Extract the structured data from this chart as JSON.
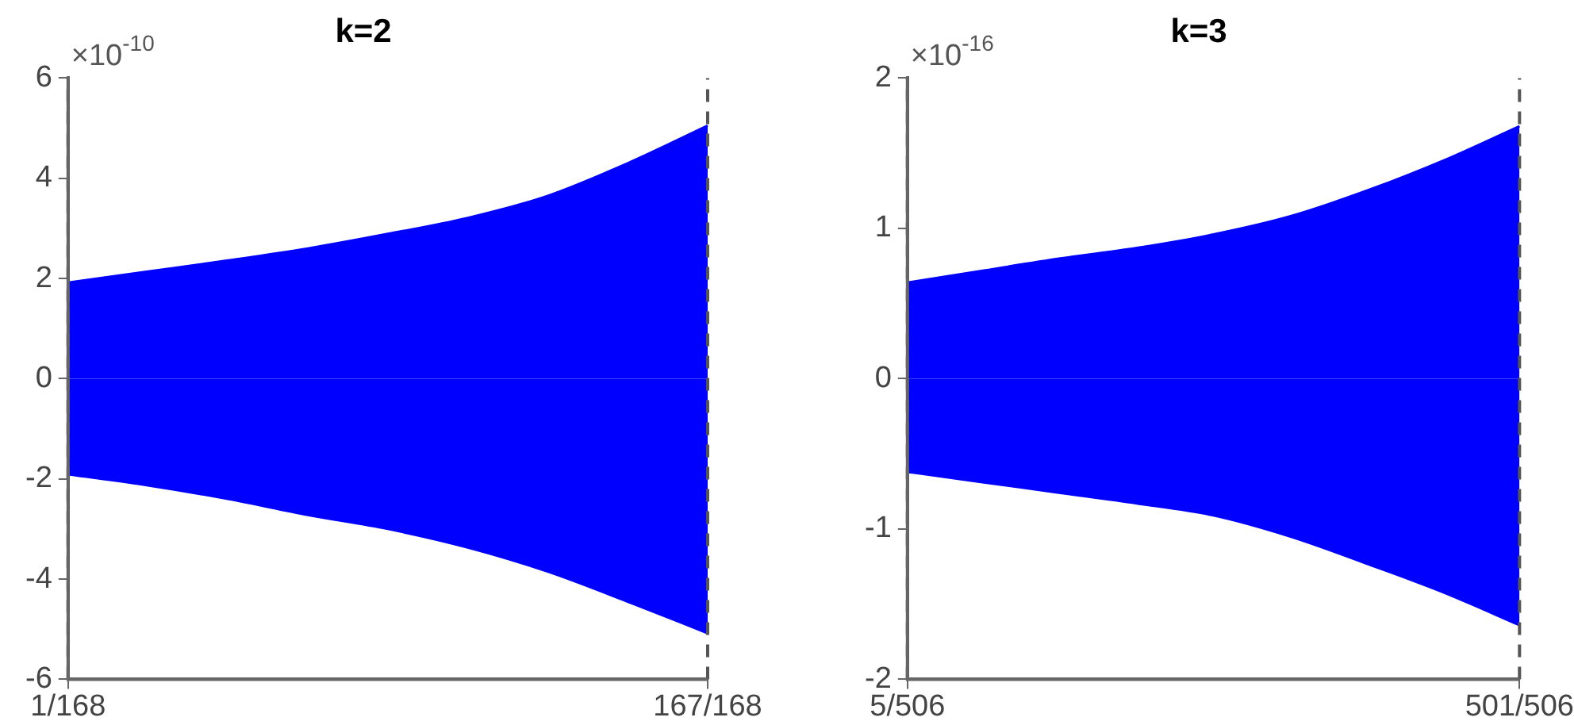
{
  "chart_data": [
    {
      "type": "area",
      "title": "k=2",
      "annotations": [
        "×10$^{-10}$"
      ],
      "categories": [
        "1/168",
        null,
        null,
        null,
        null,
        null,
        null,
        null,
        "167/168"
      ],
      "series": [
        {
          "color": "#0000ff",
          "values": [
            1.92,
            2.14,
            2.36,
            2.6,
            2.89,
            3.21,
            3.65,
            4.3,
            5.05
          ]
        },
        {
          "color": "#0000ff",
          "values": [
            -1.91,
            -2.13,
            -2.4,
            -2.72,
            -3.0,
            -3.37,
            -3.85,
            -4.45,
            -5.08
          ]
        }
      ],
      "ylim": [
        -6,
        6
      ],
      "yticks": [
        -6,
        -4,
        -2,
        0,
        2,
        4,
        6
      ],
      "ref_lines": [
        {
          "axis": "x",
          "value": "1/168",
          "color": "#555555",
          "line_style": "dashed"
        },
        {
          "axis": "x",
          "value": "167/168",
          "color": "#555555",
          "line_style": "dashed"
        }
      ],
      "grid": false,
      "legend": false,
      "marker": "none"
    },
    {
      "type": "area",
      "title": "k=3",
      "annotations": [
        "×10$^{-16}$"
      ],
      "categories": [
        "5/506",
        null,
        null,
        null,
        null,
        null,
        null,
        null,
        "501/506"
      ],
      "series": [
        {
          "color": "#0000ff",
          "values": [
            0.64,
            0.72,
            0.8,
            0.87,
            0.96,
            1.08,
            1.25,
            1.45,
            1.68
          ]
        },
        {
          "color": "#0000ff",
          "values": [
            -0.62,
            -0.69,
            -0.76,
            -0.83,
            -0.91,
            -1.05,
            -1.23,
            -1.42,
            -1.64
          ]
        }
      ],
      "ylim": [
        -2,
        2
      ],
      "yticks": [
        -2,
        -1,
        0,
        1,
        2
      ],
      "ref_lines": [
        {
          "axis": "x",
          "value": "5/506",
          "color": "#555555",
          "line_style": "dashed"
        },
        {
          "axis": "x",
          "value": "501/506",
          "color": "#555555",
          "line_style": "dashed"
        }
      ],
      "grid": false,
      "legend": false,
      "marker": "none"
    }
  ]
}
